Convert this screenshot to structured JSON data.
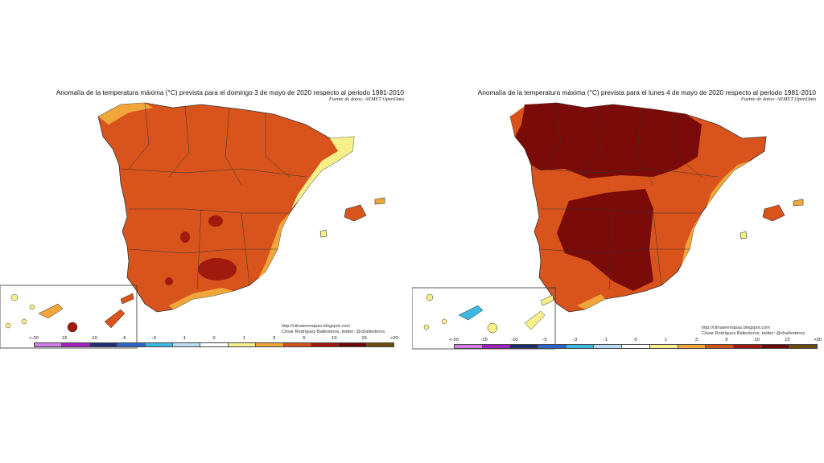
{
  "maps": [
    {
      "title": "Anomalía de la temperatura máxima (°C) prevista para el domingo 3 de mayo de 2020 respecto al periodo 1981-2010",
      "source": "Fuente de datos: AEMET OpenData",
      "credit_url": "http://climaenmapas.blogspot.com",
      "credit_author": "César Rodríguez Ballesteros, twitter: @cballesteros"
    },
    {
      "title": "Anomalía de la temperatura máxima (°C) prevista para el lunes 4 de mayo de 2020 respecto al periodo 1981-2010",
      "source": "Fuente de datos: AEMET OpenData",
      "credit_url": "http://climaenmapas.blogspot.com",
      "credit_author": "César Rodríguez Ballesteros, twitter: @cballesteros"
    }
  ],
  "legend": {
    "ticks": [
      "<-20",
      "-15",
      "-10",
      "-5",
      "-3",
      "-1",
      "0",
      "1",
      "3",
      "5",
      "10",
      "15",
      ">20"
    ],
    "colors": [
      "#d17ee8",
      "#a020c0",
      "#1f2d6e",
      "#2d64c8",
      "#3cb9e0",
      "#b8dcf0",
      "#ffffff",
      "#f7f08a",
      "#f0a63a",
      "#d0531a",
      "#a0180c",
      "#6a0808",
      "#6b4a10"
    ]
  },
  "colors": {
    "anomaly_5_10": "#d9541c",
    "anomaly_10_15": "#a01a0e",
    "anomaly_15_20": "#7a0b08",
    "anomaly_3_5": "#f0a63a",
    "anomaly_1_3": "#f7f08a",
    "anomaly_neg": "#3cb9e0",
    "border": "#333333"
  }
}
